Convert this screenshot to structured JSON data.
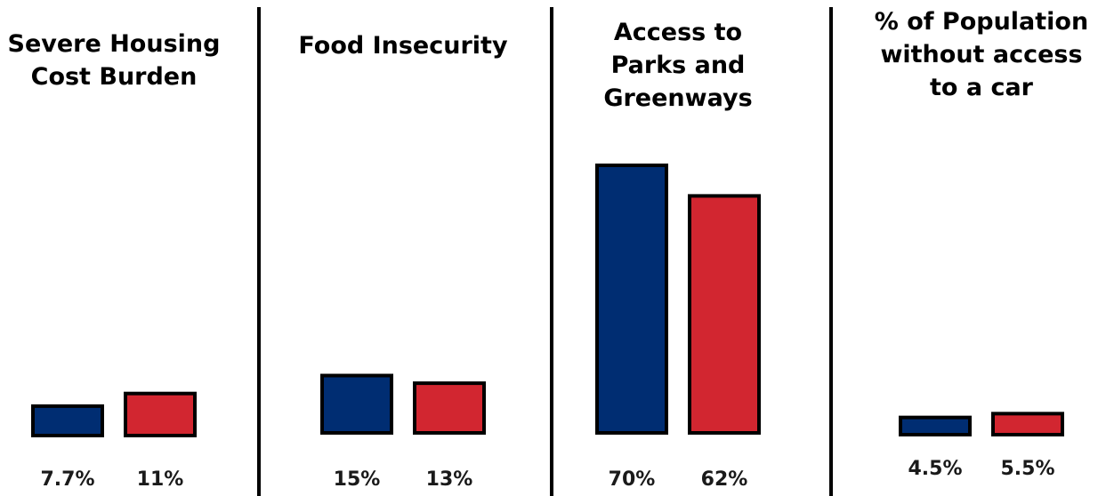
{
  "chart_data": [
    {
      "type": "bar",
      "title": [
        "Severe Housing",
        "Cost Burden"
      ],
      "values": [
        7.7,
        11
      ],
      "value_labels": [
        "7.7%",
        "11%"
      ],
      "colors": [
        "#002d72",
        "#d22630"
      ]
    },
    {
      "type": "bar",
      "title": [
        "Food Insecurity"
      ],
      "values": [
        15,
        13
      ],
      "value_labels": [
        "15%",
        "13%"
      ],
      "colors": [
        "#002d72",
        "#d22630"
      ]
    },
    {
      "type": "bar",
      "title": [
        "Access to",
        "Parks and",
        "Greenways"
      ],
      "values": [
        70,
        62
      ],
      "value_labels": [
        "70%",
        "62%"
      ],
      "colors": [
        "#002d72",
        "#d22630"
      ]
    },
    {
      "type": "bar",
      "title": [
        "% of Population",
        "without access",
        "to a car"
      ],
      "values": [
        4.5,
        5.5
      ],
      "value_labels": [
        "4.5%",
        "5.5%"
      ],
      "colors": [
        "#002d72",
        "#d22630"
      ]
    }
  ],
  "colors": {
    "bar_outline": "#000000",
    "divider": "#000000"
  }
}
